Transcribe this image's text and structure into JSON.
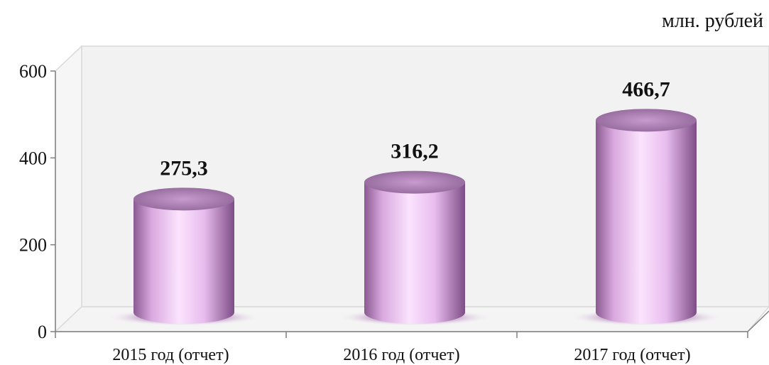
{
  "chart_data": {
    "type": "bar",
    "categories": [
      "2015 год (отчет)",
      "2016 год (отчет)",
      "2017 год  (отчет)"
    ],
    "values": [
      275.3,
      316.2,
      466.7
    ],
    "value_labels": [
      "275,3",
      "316,2",
      "466,7"
    ],
    "ylim": [
      0,
      600
    ],
    "yticks": [
      "0",
      "200",
      "400",
      "600"
    ],
    "unit": "млн. рублей",
    "bar_color": "#f2c6f5",
    "wall_color": "#f2f2f2",
    "grid": false,
    "style": "3d-cylinder"
  }
}
